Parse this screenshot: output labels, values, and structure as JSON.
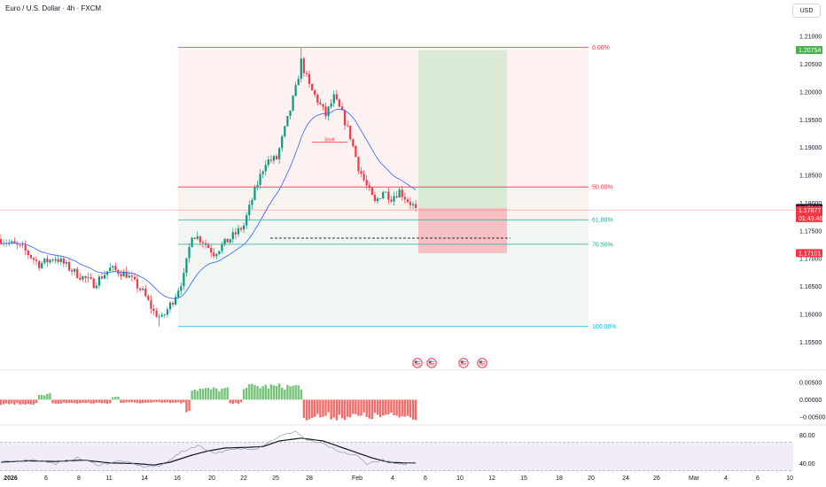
{
  "header": {
    "title": "Euro / U.S. Dollar · 4h · FXCM",
    "currency_button": "USD"
  },
  "fib": {
    "levels": [
      {
        "label": "0.00%",
        "price": 1.208,
        "color": "#f23645"
      },
      {
        "label": "50.00%",
        "price": 1.1829,
        "color": "#f23645"
      },
      {
        "label": "61.80%",
        "price": 1.177,
        "color": "#22ab94"
      },
      {
        "label": "70.50%",
        "price": 1.1726,
        "color": "#22ab94"
      },
      {
        "label": "100.00%",
        "price": 1.1578,
        "color": "#00bcd4"
      }
    ]
  },
  "position": {
    "target": 1.20754,
    "entry": 1.17913,
    "stop": 1.17101
  },
  "price_badges": {
    "target": {
      "label": "1.20754",
      "color": "#4caf50"
    },
    "last": {
      "label": "1.17913",
      "color": "#131722"
    },
    "current": {
      "label": "1.17877",
      "countdown": "01:43:46",
      "color": "#f23645"
    },
    "stop": {
      "label": "1.17101",
      "color": "#f23645"
    }
  },
  "annotation": {
    "text": "Shelf"
  },
  "chart_data": [
    {
      "type": "candlestick",
      "title": "Euro / U.S. Dollar · 4h · FXCM",
      "y_ticks": [
        "1.21000",
        "1.20500",
        "1.20000",
        "1.19500",
        "1.19000",
        "1.18500",
        "1.18000",
        "1.17500",
        "1.17000",
        "1.16500",
        "1.16000",
        "1.15500"
      ],
      "y_tick_values": [
        1.21,
        1.205,
        1.2,
        1.195,
        1.19,
        1.185,
        1.18,
        1.175,
        1.17,
        1.165,
        1.16,
        1.155
      ],
      "ylim": [
        1.1525,
        1.214
      ],
      "x_ticks": [
        "2026",
        "6",
        "8",
        "11",
        "14",
        "16",
        "20",
        "22",
        "25",
        "28",
        "Feb",
        "4",
        "6",
        "10",
        "12",
        "15",
        "18",
        "20",
        "24",
        "26",
        "Mar",
        "4",
        "6",
        "10"
      ],
      "waypoints": [
        {
          "i": 0,
          "p": 1.1735
        },
        {
          "i": 8,
          "p": 1.1718
        },
        {
          "i": 14,
          "p": 1.169
        },
        {
          "i": 20,
          "p": 1.1702
        },
        {
          "i": 28,
          "p": 1.1672
        },
        {
          "i": 34,
          "p": 1.1655
        },
        {
          "i": 40,
          "p": 1.1682
        },
        {
          "i": 46,
          "p": 1.1672
        },
        {
          "i": 52,
          "p": 1.164
        },
        {
          "i": 56,
          "p": 1.1604
        },
        {
          "i": 59,
          "p": 1.1592
        },
        {
          "i": 63,
          "p": 1.1625
        },
        {
          "i": 67,
          "p": 1.1668
        },
        {
          "i": 70,
          "p": 1.1745
        },
        {
          "i": 74,
          "p": 1.1732
        },
        {
          "i": 78,
          "p": 1.171
        },
        {
          "i": 82,
          "p": 1.1728
        },
        {
          "i": 86,
          "p": 1.1745
        },
        {
          "i": 89,
          "p": 1.176
        },
        {
          "i": 93,
          "p": 1.1822
        },
        {
          "i": 97,
          "p": 1.1875
        },
        {
          "i": 101,
          "p": 1.188
        },
        {
          "i": 105,
          "p": 1.195
        },
        {
          "i": 108,
          "p": 1.2005
        },
        {
          "i": 110,
          "p": 1.2055
        },
        {
          "i": 113,
          "p": 1.201
        },
        {
          "i": 116,
          "p": 1.1985
        },
        {
          "i": 119,
          "p": 1.1958
        },
        {
          "i": 122,
          "p": 1.199
        },
        {
          "i": 125,
          "p": 1.196
        },
        {
          "i": 128,
          "p": 1.192
        },
        {
          "i": 131,
          "p": 1.1865
        },
        {
          "i": 134,
          "p": 1.183
        },
        {
          "i": 137,
          "p": 1.18
        },
        {
          "i": 140,
          "p": 1.1822
        },
        {
          "i": 143,
          "p": 1.181
        },
        {
          "i": 146,
          "p": 1.1822
        },
        {
          "i": 149,
          "p": 1.1805
        },
        {
          "i": 152,
          "p": 1.1791
        }
      ]
    },
    {
      "type": "bar",
      "y_ticks": [
        "0.00500",
        "0.00000",
        "−0.00500"
      ],
      "y_tick_values": [
        0.005,
        0.0,
        -0.005
      ],
      "ylim": [
        -0.0068,
        0.0075
      ],
      "segments": [
        {
          "from": 0,
          "to": 13,
          "value": -0.0012
        },
        {
          "from": 14,
          "to": 18,
          "value": 0.0016
        },
        {
          "from": 19,
          "to": 40,
          "value": -0.001
        },
        {
          "from": 41,
          "to": 43,
          "value": 0.0008
        },
        {
          "from": 44,
          "to": 67,
          "value": -0.0009
        },
        {
          "from": 68,
          "to": 69,
          "value": -0.004
        },
        {
          "from": 70,
          "to": 83,
          "value": 0.003
        },
        {
          "from": 84,
          "to": 88,
          "value": -0.001
        },
        {
          "from": 89,
          "to": 110,
          "value": 0.0038
        },
        {
          "from": 111,
          "to": 152,
          "value": -0.0048
        }
      ]
    },
    {
      "type": "line",
      "y_ticks": [
        "80.00",
        "40.00"
      ],
      "y_tick_values": [
        80,
        40
      ],
      "ylim": [
        32,
        92
      ],
      "bands": [
        70,
        30
      ],
      "series": [
        {
          "points": [
            {
              "i": 0,
              "p": 42
            },
            {
              "i": 10,
              "p": 44
            },
            {
              "i": 20,
              "p": 43
            },
            {
              "i": 30,
              "p": 45
            },
            {
              "i": 40,
              "p": 41
            },
            {
              "i": 50,
              "p": 40
            },
            {
              "i": 56,
              "p": 38
            },
            {
              "i": 62,
              "p": 42
            },
            {
              "i": 70,
              "p": 52
            },
            {
              "i": 76,
              "p": 58
            },
            {
              "i": 82,
              "p": 62
            },
            {
              "i": 90,
              "p": 63
            },
            {
              "i": 96,
              "p": 64
            },
            {
              "i": 102,
              "p": 72
            },
            {
              "i": 110,
              "p": 76
            },
            {
              "i": 118,
              "p": 72
            },
            {
              "i": 124,
              "p": 64
            },
            {
              "i": 130,
              "p": 56
            },
            {
              "i": 136,
              "p": 48
            },
            {
              "i": 142,
              "p": 42
            },
            {
              "i": 148,
              "p": 41
            },
            {
              "i": 152,
              "p": 41
            }
          ]
        },
        {
          "points": [
            {
              "i": 0,
              "p": 42
            },
            {
              "i": 12,
              "p": 46
            },
            {
              "i": 20,
              "p": 40
            },
            {
              "i": 28,
              "p": 48
            },
            {
              "i": 36,
              "p": 38
            },
            {
              "i": 44,
              "p": 44
            },
            {
              "i": 52,
              "p": 36
            },
            {
              "i": 58,
              "p": 36
            },
            {
              "i": 66,
              "p": 56
            },
            {
              "i": 72,
              "p": 66
            },
            {
              "i": 78,
              "p": 55
            },
            {
              "i": 86,
              "p": 60
            },
            {
              "i": 94,
              "p": 62
            },
            {
              "i": 102,
              "p": 78
            },
            {
              "i": 108,
              "p": 86
            },
            {
              "i": 112,
              "p": 73
            },
            {
              "i": 118,
              "p": 68
            },
            {
              "i": 124,
              "p": 56
            },
            {
              "i": 130,
              "p": 52
            },
            {
              "i": 134,
              "p": 40
            },
            {
              "i": 140,
              "p": 45
            },
            {
              "i": 146,
              "p": 38
            },
            {
              "i": 152,
              "p": 42
            }
          ]
        }
      ]
    }
  ]
}
